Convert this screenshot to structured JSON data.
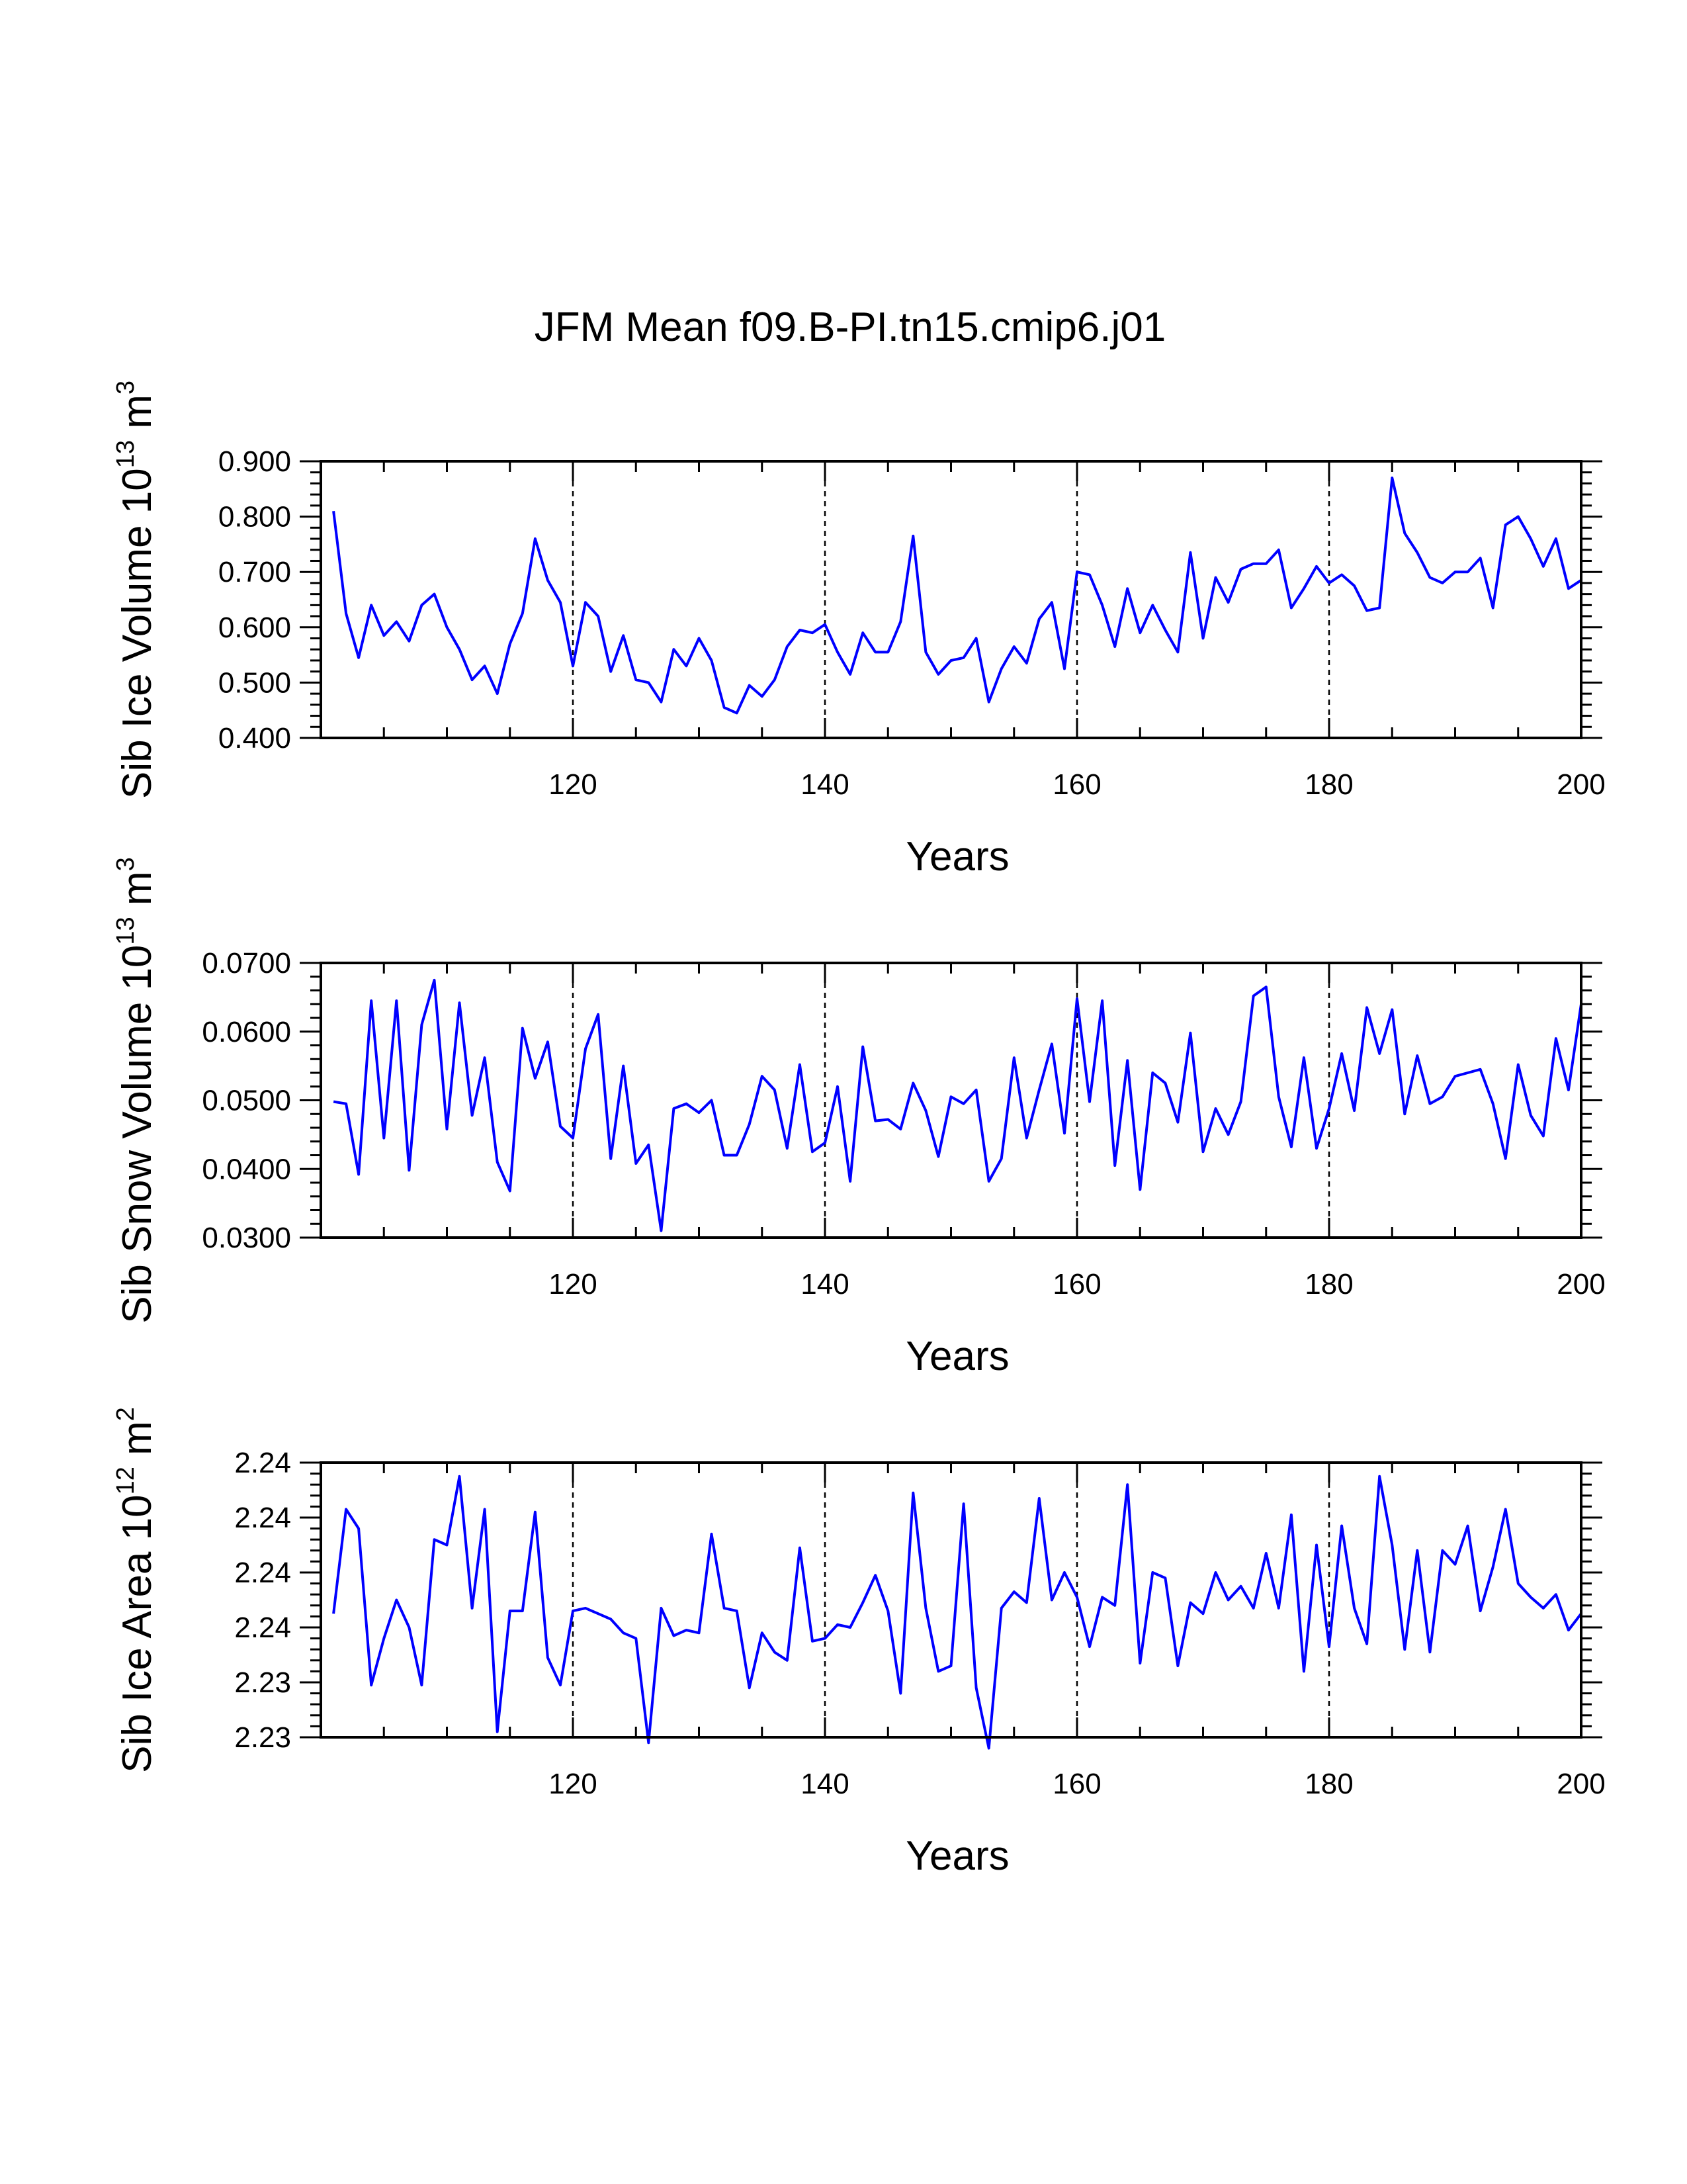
{
  "title": "JFM Mean f09.B-PI.tn15.cmip6.j01",
  "colors": {
    "line": "#0000ff",
    "axis": "#000000"
  },
  "chart_data": [
    {
      "type": "line",
      "name": "ice-volume",
      "ylabel_main": "Sib Ice Volume 10",
      "ylabel_sup": "13",
      "ylabel_unit": " m",
      "ylabel_unit_sup": "3",
      "xlabel": "Years",
      "xlim": [
        100,
        200
      ],
      "ylim": [
        0.4,
        0.9
      ],
      "xticks": [
        120,
        140,
        160,
        180,
        200
      ],
      "xtick_labels": [
        "120",
        "140",
        "160",
        "180",
        "200"
      ],
      "yticks": [
        0.4,
        0.5,
        0.6,
        0.7,
        0.8,
        0.9
      ],
      "ytick_labels": [
        "0.400",
        "0.500",
        "0.600",
        "0.700",
        "0.800",
        "0.900"
      ],
      "grid_x": [
        120,
        140,
        160,
        180
      ],
      "x_start": 101,
      "values": [
        0.81,
        0.625,
        0.545,
        0.64,
        0.585,
        0.61,
        0.575,
        0.64,
        0.66,
        0.6,
        0.56,
        0.505,
        0.53,
        0.48,
        0.57,
        0.625,
        0.76,
        0.685,
        0.645,
        0.53,
        0.645,
        0.62,
        0.52,
        0.585,
        0.505,
        0.5,
        0.465,
        0.56,
        0.53,
        0.58,
        0.54,
        0.455,
        0.445,
        0.495,
        0.475,
        0.505,
        0.565,
        0.595,
        0.59,
        0.605,
        0.555,
        0.515,
        0.59,
        0.555,
        0.555,
        0.61,
        0.765,
        0.555,
        0.515,
        0.54,
        0.545,
        0.58,
        0.465,
        0.525,
        0.565,
        0.535,
        0.615,
        0.645,
        0.525,
        0.7,
        0.695,
        0.64,
        0.565,
        0.67,
        0.59,
        0.64,
        0.595,
        0.555,
        0.735,
        0.58,
        0.69,
        0.645,
        0.705,
        0.715,
        0.715,
        0.74,
        0.635,
        0.67,
        0.71,
        0.68,
        0.695,
        0.675,
        0.63,
        0.635,
        0.87,
        0.77,
        0.735,
        0.69,
        0.68,
        0.7,
        0.7,
        0.725,
        0.635,
        0.785,
        0.8,
        0.76,
        0.71,
        0.76,
        0.67,
        0.685
      ]
    },
    {
      "type": "line",
      "name": "snow-volume",
      "ylabel_main": "Sib Snow Volume 10",
      "ylabel_sup": "13",
      "ylabel_unit": " m",
      "ylabel_unit_sup": "3",
      "xlabel": "Years",
      "xlim": [
        100,
        200
      ],
      "ylim": [
        0.03,
        0.07
      ],
      "xticks": [
        120,
        140,
        160,
        180,
        200
      ],
      "xtick_labels": [
        "120",
        "140",
        "160",
        "180",
        "200"
      ],
      "yticks": [
        0.03,
        0.04,
        0.05,
        0.06,
        0.07
      ],
      "ytick_labels": [
        "0.0300",
        "0.0400",
        "0.0500",
        "0.0600",
        "0.0700"
      ],
      "grid_x": [
        120,
        140,
        160,
        180
      ],
      "x_start": 101,
      "values": [
        0.0498,
        0.0495,
        0.0392,
        0.0645,
        0.0445,
        0.0645,
        0.0398,
        0.061,
        0.0675,
        0.0458,
        0.0642,
        0.0478,
        0.0562,
        0.041,
        0.0368,
        0.0605,
        0.0532,
        0.0585,
        0.0462,
        0.0445,
        0.0575,
        0.0625,
        0.0415,
        0.055,
        0.0408,
        0.0435,
        0.031,
        0.0488,
        0.0495,
        0.0482,
        0.05,
        0.042,
        0.042,
        0.0465,
        0.0535,
        0.0515,
        0.043,
        0.0552,
        0.0425,
        0.0438,
        0.052,
        0.0382,
        0.0578,
        0.047,
        0.0472,
        0.0458,
        0.0525,
        0.0485,
        0.0418,
        0.0505,
        0.0495,
        0.0515,
        0.0382,
        0.0415,
        0.0562,
        0.0445,
        0.0515,
        0.0582,
        0.0452,
        0.0648,
        0.0498,
        0.0645,
        0.0405,
        0.0558,
        0.037,
        0.054,
        0.0525,
        0.0468,
        0.0598,
        0.0425,
        0.0488,
        0.045,
        0.0498,
        0.0652,
        0.0665,
        0.0505,
        0.0432,
        0.0562,
        0.043,
        0.0488,
        0.0568,
        0.0485,
        0.0635,
        0.0568,
        0.0632,
        0.048,
        0.0565,
        0.0495,
        0.0505,
        0.0535,
        0.054,
        0.0545,
        0.0495,
        0.0415,
        0.0552,
        0.0478,
        0.0448,
        0.059,
        0.0515,
        0.064
      ]
    },
    {
      "type": "line",
      "name": "ice-area",
      "ylabel_main": "Sib Ice Area 10",
      "ylabel_sup": "12",
      "ylabel_unit": " m",
      "ylabel_unit_sup": "2",
      "xlabel": "Years",
      "xlim": [
        100,
        200
      ],
      "ylim": [
        2.23,
        2.24
      ],
      "xticks": [
        120,
        140,
        160,
        180,
        200
      ],
      "xtick_labels": [
        "120",
        "140",
        "160",
        "180",
        "200"
      ],
      "yticks": [
        2.23,
        2.232,
        2.234,
        2.236,
        2.238,
        2.24
      ],
      "ytick_labels": [
        "2.23",
        "2.23",
        "2.24",
        "2.24",
        "2.24",
        "2.24"
      ],
      "grid_x": [
        120,
        140,
        160,
        180
      ],
      "x_start": 101,
      "values": [
        2.2345,
        2.2383,
        2.2376,
        2.2319,
        2.2336,
        2.235,
        2.234,
        2.2319,
        2.2372,
        2.237,
        2.2395,
        2.2347,
        2.2383,
        2.2302,
        2.2346,
        2.2346,
        2.2382,
        2.2329,
        2.2319,
        2.2346,
        2.2347,
        2.2345,
        2.2343,
        2.2338,
        2.2336,
        2.2298,
        2.2347,
        2.2337,
        2.2339,
        2.2338,
        2.2374,
        2.2347,
        2.2346,
        2.2318,
        2.2338,
        2.2331,
        2.2328,
        2.2369,
        2.2335,
        2.2336,
        2.2341,
        2.234,
        2.2349,
        2.2359,
        2.2346,
        2.2316,
        2.2389,
        2.2347,
        2.2324,
        2.2326,
        2.2385,
        2.2318,
        2.2296,
        2.2347,
        2.2353,
        2.2349,
        2.2387,
        2.235,
        2.236,
        2.2351,
        2.2333,
        2.2351,
        2.2348,
        2.2392,
        2.2327,
        2.236,
        2.2358,
        2.2326,
        2.2349,
        2.2345,
        2.236,
        2.235,
        2.2355,
        2.2347,
        2.2367,
        2.2347,
        2.2381,
        2.2324,
        2.237,
        2.2333,
        2.2377,
        2.2347,
        2.2334,
        2.2395,
        2.237,
        2.2332,
        2.2368,
        2.2331,
        2.2368,
        2.2363,
        2.2377,
        2.2346,
        2.2362,
        2.2383,
        2.2356,
        2.2351,
        2.2347,
        2.2352,
        2.2339,
        2.2345
      ]
    }
  ]
}
